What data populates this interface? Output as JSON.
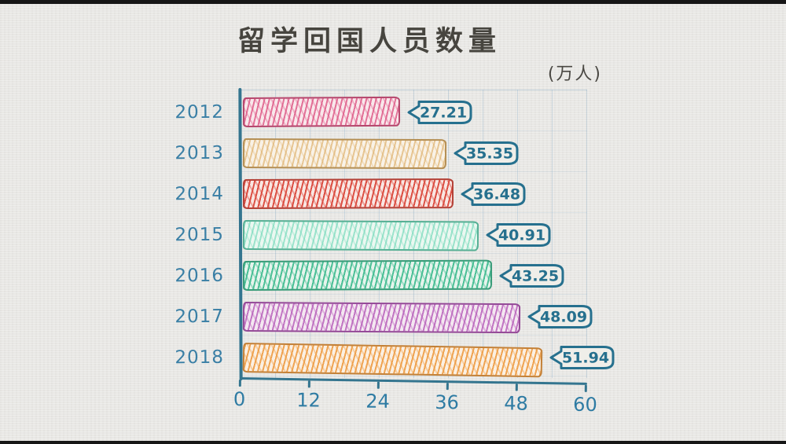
{
  "page": {
    "title": "留学回国人员数量",
    "unit_label": "(万人)"
  },
  "chart_data": {
    "type": "bar",
    "orientation": "horizontal",
    "title": "留学回国人员数量",
    "unit": "万人",
    "categories": [
      "2012",
      "2013",
      "2014",
      "2015",
      "2016",
      "2017",
      "2018"
    ],
    "values": [
      27.21,
      35.35,
      36.48,
      40.91,
      43.25,
      48.09,
      51.94
    ],
    "value_labels": [
      "27.21",
      "35.35",
      "36.48",
      "40.91",
      "43.25",
      "48.09",
      "51.94"
    ],
    "xlabel": "",
    "ylabel": "",
    "xlim": [
      0,
      60
    ],
    "x_ticks": [
      0,
      12,
      24,
      36,
      48,
      60
    ],
    "grid": true,
    "legend": false,
    "style": "hand-drawn",
    "bar_colors": [
      "#dd5584",
      "#ddae67",
      "#dc4f43",
      "#68d6b4",
      "#43bd92",
      "#b55ab8",
      "#ee9c43"
    ],
    "accent_color": "#2e7ba3",
    "axis_color": "#34758f",
    "title_color": "#47453f",
    "background_color": "#e9e8e5"
  }
}
